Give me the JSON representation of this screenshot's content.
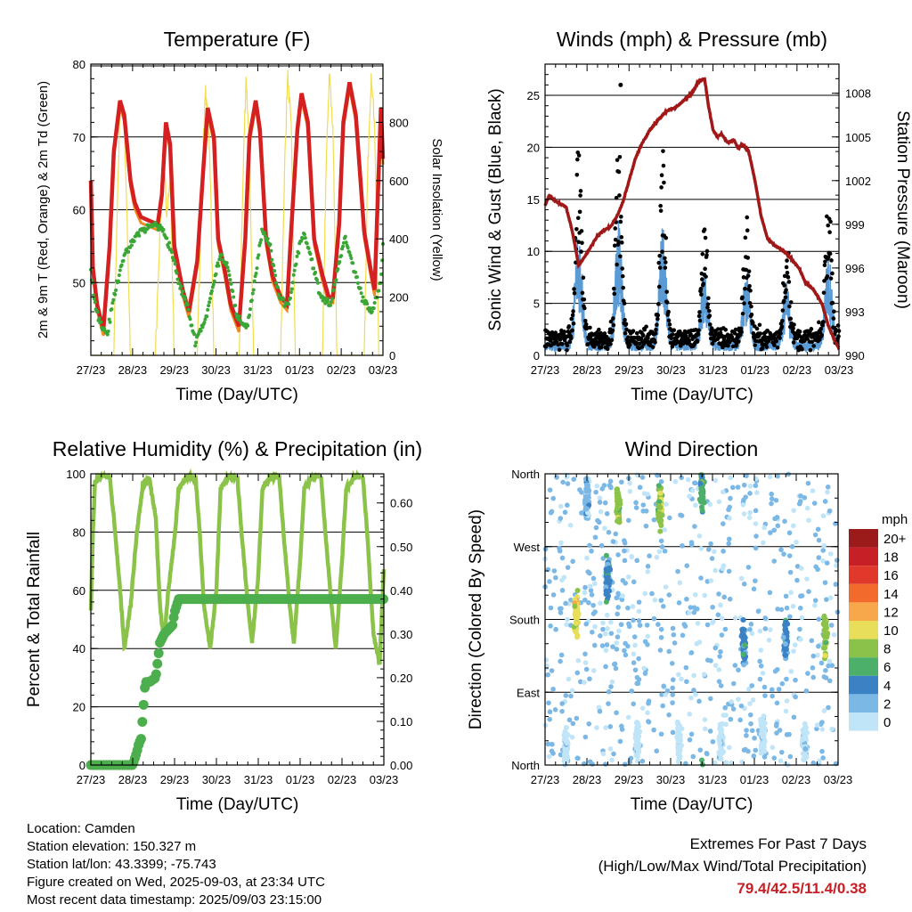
{
  "panels": {
    "temperature": {
      "title": "Temperature (F)",
      "ylabel_left": "2m & 9m T (Red, Orange) & 2m Td (Green)",
      "ylabel_right": "Solar Insolation (Yellow)",
      "xlabel": "Time (Day/UTC)"
    },
    "winds": {
      "title": "Winds (mph) & Pressure (mb)",
      "ylabel_left": "Sonic Wind & Gust (Blue, Black)",
      "ylabel_right": "Station Pressure (Maroon)",
      "xlabel": "Time (Day/UTC)"
    },
    "humidity": {
      "title": "Relative Humidity (%) & Precipitation (in)",
      "ylabel_left": "Percent & Total Rainfall",
      "xlabel": "Time (Day/UTC)"
    },
    "direction": {
      "title": "Wind Direction",
      "ylabel_left": "Direction (Colored By Speed)",
      "xlabel": "Time (Day/UTC)",
      "legend_title": "mph"
    }
  },
  "info": {
    "location": "Location: Camden",
    "elevation": "Station elevation: 150.327 m",
    "latlon": "Station lat/lon: 43.3399; -75.743",
    "created": "Figure created on Wed, 2025-09-03, at 23:34 UTC",
    "recent": "Most recent data timestamp: 2025/09/03 23:15:00",
    "extremes_title": "Extremes For Past 7 Days",
    "extremes_sub": "(High/Low/Max Wind/Total Precipitation)",
    "extremes_value": "79.4/42.5/11.4/0.38"
  },
  "chart_data": [
    {
      "id": "temperature",
      "type": "line",
      "title": "Temperature (F)",
      "xlabel": "Time (Day/UTC)",
      "ylabel": "2m & 9m T (Red, Orange) & 2m Td (Green)",
      "y2label": "Solar Insolation (Yellow)",
      "x_tick_labels": [
        "27/23",
        "28/23",
        "29/23",
        "30/23",
        "31/23",
        "01/23",
        "02/23",
        "03/23"
      ],
      "xlim": [
        0,
        7
      ],
      "ylim": [
        40,
        80
      ],
      "y_ticks": [
        50,
        60,
        70,
        80
      ],
      "y2lim": [
        0,
        1000
      ],
      "y2_ticks": [
        0,
        200,
        400,
        600,
        800
      ],
      "grid_y": [
        50,
        60,
        70,
        80
      ],
      "colors": {
        "temp_2m": "#d42020",
        "temp_9m": "#f08a20",
        "dewpoint": "#3aa635",
        "solar": "#f2dc50"
      },
      "series": [
        {
          "name": "2m T",
          "x": [
            0,
            0.05,
            0.15,
            0.3,
            0.45,
            0.55,
            0.7,
            0.8,
            0.95,
            1.05,
            1.2,
            1.4,
            1.6,
            1.7,
            1.8,
            1.9,
            2.0,
            2.05,
            2.2,
            2.35,
            2.55,
            2.7,
            2.8,
            2.95,
            3.05,
            3.2,
            3.35,
            3.55,
            3.7,
            3.8,
            3.95,
            4.05,
            4.2,
            4.35,
            4.55,
            4.7,
            4.8,
            4.95,
            5.05,
            5.2,
            5.35,
            5.55,
            5.7,
            5.8,
            5.95,
            6.05,
            6.2,
            6.35,
            6.55,
            6.7,
            6.8,
            6.95,
            7.0
          ],
          "values": [
            64,
            52,
            47,
            43.5,
            55,
            68,
            75,
            73,
            64,
            61,
            59,
            58.5,
            58,
            62,
            72,
            69,
            55,
            53.5,
            49,
            46,
            53,
            66,
            74,
            70,
            56,
            52,
            47,
            44,
            56,
            70,
            75,
            71,
            56,
            51,
            48,
            47,
            57,
            71,
            76,
            72,
            56,
            51,
            48,
            48,
            58,
            72,
            77.5,
            73,
            57,
            52,
            49,
            74,
            67
          ]
        },
        {
          "name": "2m Td",
          "x": [
            0,
            0.1,
            0.25,
            0.4,
            0.55,
            0.75,
            0.95,
            1.15,
            1.35,
            1.55,
            1.75,
            1.95,
            2.1,
            2.3,
            2.5,
            2.75,
            2.95,
            3.1,
            3.3,
            3.5,
            3.75,
            3.95,
            4.1,
            4.3,
            4.5,
            4.75,
            4.95,
            5.1,
            5.3,
            5.5,
            5.75,
            5.95,
            6.1,
            6.3,
            6.5,
            6.75,
            6.95,
            7.0
          ],
          "values": [
            52,
            47,
            44,
            43,
            48,
            53,
            55,
            57,
            57.5,
            58,
            57,
            54,
            50,
            47,
            42,
            45,
            50,
            54,
            52,
            45,
            44,
            51,
            57,
            55,
            48,
            47,
            54,
            57,
            53,
            48,
            47,
            53,
            56,
            52,
            48,
            46,
            50,
            55
          ]
        },
        {
          "name": "Solar Insolation",
          "axis": "right",
          "x": [
            0.55,
            0.65,
            0.7,
            0.78,
            0.85,
            0.95,
            1.55,
            1.65,
            1.75,
            1.82,
            1.9,
            2.0,
            2.55,
            2.65,
            2.75,
            2.85,
            2.95,
            3.55,
            3.65,
            3.72,
            3.8,
            3.9,
            4.55,
            4.65,
            4.72,
            4.8,
            4.9,
            5.55,
            5.65,
            5.72,
            5.8,
            5.9,
            6.55,
            6.65,
            6.72,
            6.8,
            6.9
          ],
          "values": [
            0,
            600,
            850,
            860,
            550,
            0,
            0,
            400,
            700,
            480,
            600,
            0,
            0,
            550,
            920,
            700,
            0,
            0,
            650,
            950,
            700,
            0,
            0,
            700,
            960,
            800,
            0,
            0,
            700,
            960,
            780,
            0,
            0,
            720,
            960,
            800,
            0
          ]
        }
      ]
    },
    {
      "id": "winds",
      "type": "scatter",
      "title": "Winds (mph) & Pressure (mb)",
      "xlabel": "Time (Day/UTC)",
      "ylabel": "Sonic Wind & Gust (Blue, Black)",
      "y2label": "Station Pressure (Maroon)",
      "x_tick_labels": [
        "27/23",
        "28/23",
        "29/23",
        "30/23",
        "31/23",
        "01/23",
        "02/23",
        "03/23"
      ],
      "xlim": [
        0,
        7
      ],
      "ylim": [
        0,
        28
      ],
      "y_ticks": [
        0,
        5,
        10,
        15,
        20,
        25
      ],
      "y2lim": [
        990,
        1010
      ],
      "y2_ticks": [
        990,
        993,
        996,
        999,
        1002,
        1005,
        1008
      ],
      "grid_y": [
        5,
        10,
        15,
        20,
        25
      ],
      "colors": {
        "wind": "#5b9bd5",
        "gust": "#000000",
        "pressure": "#a01818"
      },
      "gust_peaks": [
        {
          "day": 0.8,
          "peak": 20
        },
        {
          "day": 1.75,
          "peak": 20
        },
        {
          "day": 2.8,
          "peak": 19
        },
        {
          "day": 3.8,
          "peak": 12
        },
        {
          "day": 4.8,
          "peak": 12
        },
        {
          "day": 5.75,
          "peak": 10
        },
        {
          "day": 6.75,
          "peak": 15
        }
      ],
      "max_gust": 26,
      "series": [
        {
          "name": "Station Pressure",
          "axis": "right",
          "x": [
            0,
            0.1,
            0.2,
            0.35,
            0.5,
            0.65,
            0.8,
            0.95,
            1.1,
            1.25,
            1.4,
            1.55,
            1.7,
            1.85,
            2.0,
            2.15,
            2.3,
            2.5,
            2.7,
            2.9,
            3.1,
            3.3,
            3.5,
            3.65,
            3.8,
            3.9,
            4.0,
            4.1,
            4.2,
            4.35,
            4.5,
            4.6,
            4.7,
            4.85,
            5.0,
            5.15,
            5.3,
            5.45,
            5.6,
            5.75,
            5.9,
            6.05,
            6.2,
            6.4,
            6.6,
            6.75,
            6.9,
            7.0
          ],
          "values": [
            1000.3,
            1001,
            1000.7,
            1000.4,
            1000.2,
            998.5,
            996.2,
            996.8,
            997.5,
            998.2,
            998.6,
            998.8,
            999.5,
            1000.5,
            1002,
            1003.5,
            1004.5,
            1005.5,
            1006.2,
            1006.8,
            1007,
            1007.5,
            1008,
            1008.8,
            1009,
            1007,
            1005.5,
            1005,
            1005.2,
            1004.6,
            1004.8,
            1004.2,
            1004.5,
            1004,
            1002,
            999.5,
            998,
            997.6,
            997.3,
            997,
            996.5,
            996,
            995,
            994.5,
            993.5,
            992,
            991,
            990.5
          ]
        }
      ]
    },
    {
      "id": "humidity",
      "type": "line",
      "title": "Relative Humidity (%) & Precipitation (in)",
      "xlabel": "Time (Day/UTC)",
      "ylabel": "Percent & Total Rainfall",
      "x_tick_labels": [
        "27/23",
        "28/23",
        "29/23",
        "30/23",
        "31/23",
        "01/23",
        "02/23",
        "03/23"
      ],
      "xlim": [
        0,
        7
      ],
      "ylim": [
        0,
        100
      ],
      "y_ticks": [
        0,
        20,
        40,
        60,
        80,
        100
      ],
      "y2lim": [
        0,
        0.6667
      ],
      "y2_ticks": [
        0.0,
        0.1,
        0.2,
        0.3,
        0.4,
        0.5,
        0.6
      ],
      "y2_tick_labels": [
        "0.00",
        "0.10",
        "0.20",
        "0.30",
        "0.40",
        "0.50",
        "0.60"
      ],
      "grid_y": [
        20,
        40,
        60,
        80,
        100
      ],
      "colors": {
        "rh": "#8bc34a",
        "precip": "#4cae4c"
      },
      "series": [
        {
          "name": "Relative Humidity",
          "x": [
            0,
            0.05,
            0.1,
            0.2,
            0.45,
            0.55,
            0.7,
            0.8,
            0.95,
            1.1,
            1.25,
            1.4,
            1.55,
            1.65,
            1.75,
            1.85,
            2.0,
            2.1,
            2.3,
            2.5,
            2.6,
            2.7,
            2.85,
            3.0,
            3.1,
            3.3,
            3.5,
            3.6,
            3.75,
            3.85,
            4.0,
            4.1,
            4.3,
            4.5,
            4.6,
            4.75,
            4.85,
            5.0,
            5.1,
            5.3,
            5.5,
            5.6,
            5.75,
            5.85,
            6.0,
            6.1,
            6.3,
            6.5,
            6.6,
            6.75,
            6.9,
            7.0
          ],
          "values": [
            53,
            80,
            97,
            99,
            99,
            85,
            60,
            40,
            55,
            80,
            97,
            98,
            85,
            55,
            42,
            60,
            78,
            95,
            99,
            99,
            80,
            55,
            40,
            60,
            95,
            99,
            99,
            80,
            55,
            42,
            65,
            95,
            99,
            99,
            80,
            55,
            42,
            70,
            95,
            99,
            99,
            80,
            55,
            40,
            70,
            95,
            99,
            99,
            80,
            45,
            35,
            68
          ]
        },
        {
          "name": "Total Precipitation",
          "axis": "right",
          "x": [
            0,
            0.5,
            1.0,
            1.1,
            1.15,
            1.2,
            1.3,
            1.4,
            1.55,
            1.65,
            1.75,
            1.85,
            1.95,
            2.0,
            2.1,
            2.5,
            3.0,
            4.0,
            5.0,
            6.0,
            7.0
          ],
          "values": [
            0,
            0,
            0,
            0.03,
            0.05,
            0.06,
            0.19,
            0.19,
            0.2,
            0.28,
            0.3,
            0.31,
            0.32,
            0.35,
            0.38,
            0.38,
            0.38,
            0.38,
            0.38,
            0.38,
            0.38
          ]
        }
      ]
    },
    {
      "id": "direction",
      "type": "scatter",
      "title": "Wind Direction",
      "xlabel": "Time (Day/UTC)",
      "ylabel": "Direction (Colored By Speed)",
      "x_tick_labels": [
        "27/23",
        "28/23",
        "29/23",
        "30/23",
        "31/23",
        "01/23",
        "02/23",
        "03/23"
      ],
      "xlim": [
        0,
        7
      ],
      "ylim": [
        0,
        360
      ],
      "y_tick_values": [
        0,
        90,
        180,
        270,
        360
      ],
      "y_tick_labels": [
        "North",
        "East",
        "South",
        "West",
        "North"
      ],
      "grid_y": [
        90,
        180,
        270,
        360
      ],
      "legend": {
        "title": "mph",
        "placement": "right",
        "entries": [
          {
            "label": "20+",
            "color": "#9b1b1b"
          },
          {
            "label": "18",
            "color": "#c62026"
          },
          {
            "label": "16",
            "color": "#e0392b"
          },
          {
            "label": "14",
            "color": "#f26b2d"
          },
          {
            "label": "12",
            "color": "#f7a84a"
          },
          {
            "label": "10",
            "color": "#e8de5a"
          },
          {
            "label": "8",
            "color": "#8bc34a"
          },
          {
            "label": "6",
            "color": "#4caf6a"
          },
          {
            "label": "4",
            "color": "#3b82c4"
          },
          {
            "label": "2",
            "color": "#7bb8e6"
          },
          {
            "label": "0",
            "color": "#c0e4f8"
          }
        ]
      },
      "clusters": [
        {
          "day": 0.5,
          "dir_center": 20,
          "speed": 0
        },
        {
          "day": 0.75,
          "dir_center": 185,
          "speed": 10
        },
        {
          "day": 1.0,
          "dir_center": 330,
          "speed": 2
        },
        {
          "day": 1.5,
          "dir_center": 230,
          "speed": 4
        },
        {
          "day": 1.75,
          "dir_center": 320,
          "speed": 8
        },
        {
          "day": 2.2,
          "dir_center": 30,
          "speed": 0
        },
        {
          "day": 2.75,
          "dir_center": 320,
          "speed": 8
        },
        {
          "day": 3.2,
          "dir_center": 30,
          "speed": 0
        },
        {
          "day": 3.75,
          "dir_center": 340,
          "speed": 6
        },
        {
          "day": 4.2,
          "dir_center": 30,
          "speed": 0
        },
        {
          "day": 4.75,
          "dir_center": 150,
          "speed": 4
        },
        {
          "day": 5.2,
          "dir_center": 30,
          "speed": 0
        },
        {
          "day": 5.75,
          "dir_center": 150,
          "speed": 4
        },
        {
          "day": 6.2,
          "dir_center": 30,
          "speed": 0
        },
        {
          "day": 6.7,
          "dir_center": 160,
          "speed": 8
        }
      ]
    }
  ]
}
